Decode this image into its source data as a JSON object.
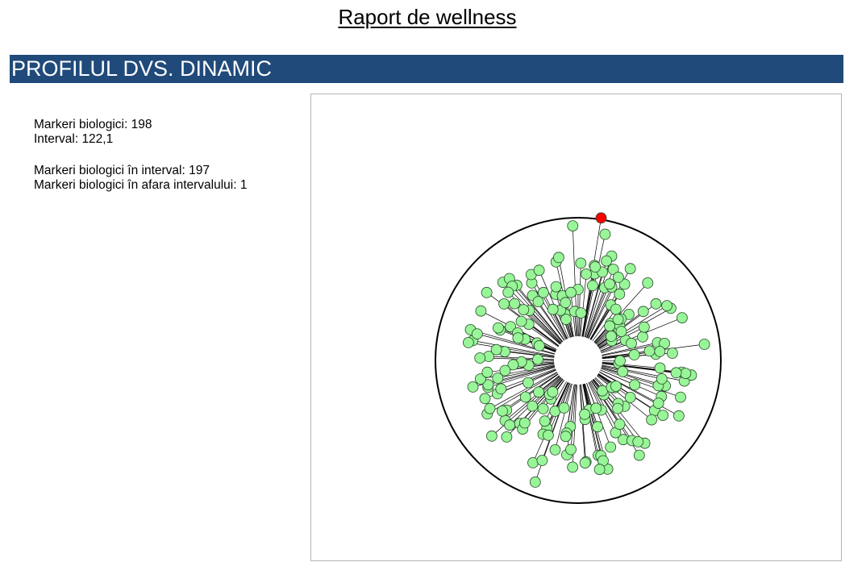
{
  "report": {
    "title": "Raport de wellness"
  },
  "section": {
    "title": "PROFILUL DVS. DINAMIC"
  },
  "stats": {
    "biomarkers_line": "Markeri biologici: 198",
    "interval_line": "Interval: 122,1",
    "in_range_line": "Markeri biologici în interval: 197",
    "out_range_line": "Markeri biologici în afara intervalului: 1"
  },
  "chart_data": {
    "type": "radial",
    "title": "",
    "total_markers": 198,
    "in_range_count": 197,
    "out_of_range_count": 1,
    "colors": {
      "in_range": "#98f598",
      "out_of_range": "#ff0000",
      "line": "#000000"
    }
  }
}
